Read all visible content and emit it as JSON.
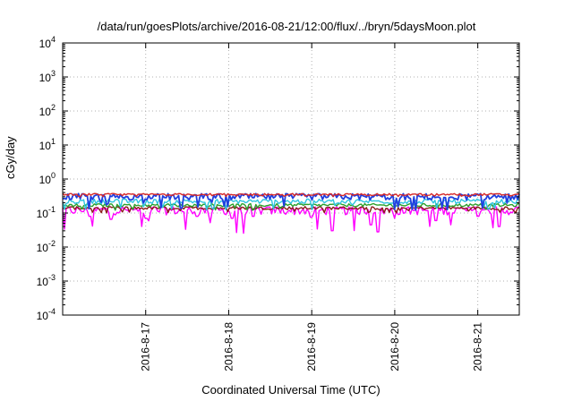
{
  "chart_data": {
    "type": "line",
    "title": "/data/run/goesPlots/archive/2016-08-21/12:00/flux/../bryn/5daysMoon.plot",
    "xlabel": "Coordinated Universal Time (UTC)",
    "ylabel": "cGy/day",
    "yscale": "log",
    "ylim": [
      0.0001,
      10000
    ],
    "y_ticks": [
      {
        "value": 0.0001,
        "base": "10",
        "exp": "-4"
      },
      {
        "value": 0.001,
        "base": "10",
        "exp": "-3"
      },
      {
        "value": 0.01,
        "base": "10",
        "exp": "-2"
      },
      {
        "value": 0.1,
        "base": "10",
        "exp": "-1"
      },
      {
        "value": 1,
        "base": "10",
        "exp": "0"
      },
      {
        "value": 10,
        "base": "10",
        "exp": "1"
      },
      {
        "value": 100,
        "base": "10",
        "exp": "2"
      },
      {
        "value": 1000,
        "base": "10",
        "exp": "3"
      },
      {
        "value": 10000,
        "base": "10",
        "exp": "4"
      }
    ],
    "xlim": [
      "2016-08-16 00:00",
      "2016-08-21 12:00"
    ],
    "x_ticks": [
      "2016-8-17",
      "2016-8-18",
      "2016-8-19",
      "2016-8-20",
      "2016-8-21"
    ],
    "grid": true,
    "series_colors": [
      "#d62728",
      "#1f3fe0",
      "#2ec4e0",
      "#2ca02c",
      "#8b1a1a",
      "#ff00ff"
    ],
    "series": [
      {
        "color": "#d62728",
        "typical": 0.35,
        "range": [
          0.3,
          0.45
        ]
      },
      {
        "color": "#1f3fe0",
        "typical": 0.3,
        "range": [
          0.12,
          0.42
        ]
      },
      {
        "color": "#2ec4e0",
        "typical": 0.22,
        "range": [
          0.12,
          0.3
        ]
      },
      {
        "color": "#2ca02c",
        "typical": 0.17,
        "range": [
          0.12,
          0.22
        ]
      },
      {
        "color": "#8b1a1a",
        "typical": 0.14,
        "range": [
          0.1,
          0.18
        ]
      },
      {
        "color": "#ff00ff",
        "typical": 0.12,
        "range": [
          0.025,
          0.15
        ]
      }
    ],
    "dips": [
      {
        "x": "2016-08-16 08:00",
        "value": 0.08
      },
      {
        "x": "2016-08-16 14:00",
        "value": 0.065
      },
      {
        "x": "2016-08-17 00:00",
        "value": 0.07
      },
      {
        "x": "2016-08-17 15:00",
        "value": 0.08
      },
      {
        "x": "2016-08-18 01:00",
        "value": 0.07
      },
      {
        "x": "2016-08-18 07:00",
        "value": 0.08
      },
      {
        "x": "2016-08-19 00:00",
        "value": 0.075
      },
      {
        "x": "2016-08-19 17:00",
        "value": 0.045
      },
      {
        "x": "2016-08-19 19:00",
        "value": 0.028
      },
      {
        "x": "2016-08-20 00:00",
        "value": 0.07
      },
      {
        "x": "2016-08-20 12:00",
        "value": 0.06
      },
      {
        "x": "2016-08-21 00:00",
        "value": 0.08
      },
      {
        "x": "2016-08-21 06:00",
        "value": 0.04
      }
    ]
  }
}
